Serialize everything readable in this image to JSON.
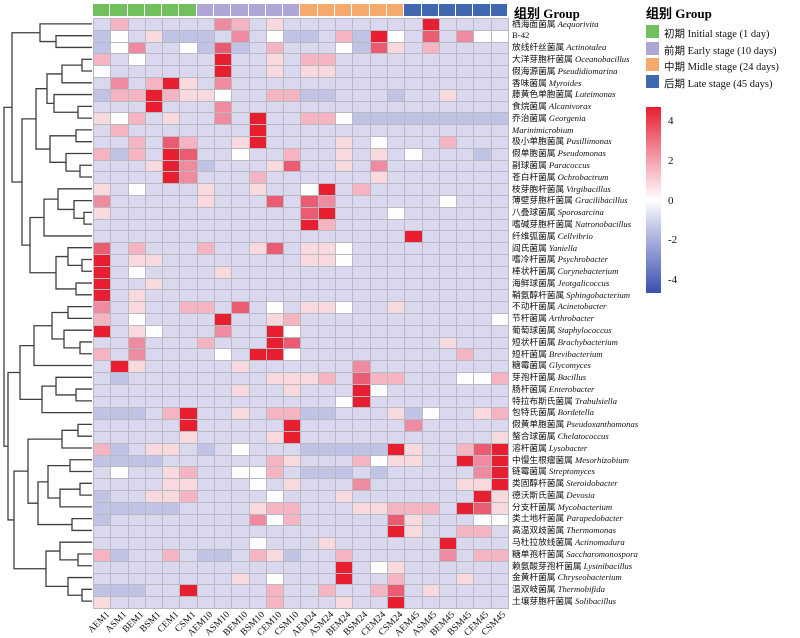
{
  "annotation_label": "组别 Group",
  "group_legend": {
    "title": "组别 Group",
    "items": [
      {
        "label": "初期 Initial stage (1 day)",
        "color": "#72bf5e"
      },
      {
        "label": "前期 Early stage (10 days)",
        "color": "#b0a6d6"
      },
      {
        "label": "中期 Midle stage (24 days)",
        "color": "#f4aa6c"
      },
      {
        "label": "后期 Late stage (45 days)",
        "color": "#3f68ae"
      }
    ]
  },
  "colorbar": {
    "ticks": [
      "4",
      "2",
      "0",
      "-2",
      "-4"
    ],
    "tick_values": [
      4,
      2,
      0,
      -2,
      -4
    ],
    "top_color": "#e71f31",
    "mid_color": "#ffffff",
    "bottom_color": "#3a50b0",
    "range": [
      4.7,
      -4.7
    ]
  },
  "chart_data": {
    "type": "heatmap",
    "title": "",
    "legend_position": "right",
    "grid": true,
    "value_range": [
      -4,
      4
    ],
    "columns": [
      "AEM1",
      "ASM1",
      "BEM1",
      "BSM1",
      "CEM1",
      "CSM1",
      "AEM10",
      "ASM10",
      "BEM10",
      "BSM10",
      "CEM10",
      "CSM10",
      "AEM24",
      "ASM24",
      "BEM24",
      "BSM24",
      "CEM24",
      "CSM24",
      "AEM45",
      "ASM45",
      "BEM45",
      "BSM45",
      "CEM45",
      "CSM45"
    ],
    "column_groups": [
      0,
      0,
      0,
      0,
      0,
      0,
      1,
      1,
      1,
      1,
      1,
      1,
      2,
      2,
      2,
      2,
      2,
      2,
      3,
      3,
      3,
      3,
      3,
      3
    ],
    "group_colors": [
      "#72bf5e",
      "#b0a6d6",
      "#f4aa6c",
      "#3f68ae"
    ],
    "rows": [
      {
        "cn": "栖海面菌属",
        "latin": "Aequorivita",
        "italic": true
      },
      {
        "cn": "",
        "latin": "B-42",
        "italic": false
      },
      {
        "cn": "放线纤丝菌属",
        "latin": "Actinotalea",
        "italic": true
      },
      {
        "cn": "大洋芽胞杆菌属",
        "latin": "Oceanobacillus",
        "italic": true
      },
      {
        "cn": "假海源菌属",
        "latin": "Pseudidiomarina",
        "italic": true
      },
      {
        "cn": "香味菌属",
        "latin": "Myroides",
        "italic": true
      },
      {
        "cn": "藤黄色单胞菌属",
        "latin": "Luteimonas",
        "italic": true
      },
      {
        "cn": "食烷菌属",
        "latin": "Alcanivorax",
        "italic": true
      },
      {
        "cn": "乔治菌属",
        "latin": "Georgenia",
        "italic": true
      },
      {
        "cn": "",
        "latin": "Marinimicrobium",
        "italic": true
      },
      {
        "cn": "极小单胞菌属",
        "latin": "Pusillimonas",
        "italic": true
      },
      {
        "cn": "假单胞菌属",
        "latin": "Pseudomonas",
        "italic": true
      },
      {
        "cn": "副球菌属",
        "latin": "Paracoccus",
        "italic": true
      },
      {
        "cn": "苍白杆菌属",
        "latin": "Ochrobactrum",
        "italic": true
      },
      {
        "cn": "枝芽胞杆菌属",
        "latin": "Virgibacillus",
        "italic": true
      },
      {
        "cn": "薄壁芽胞杆菌属",
        "latin": "Gracilibacillus",
        "italic": true
      },
      {
        "cn": "八叠球菌属",
        "latin": "Sporosarcina",
        "italic": true
      },
      {
        "cn": "嗜碱芽胞杆菌属",
        "latin": "Natronobacillus",
        "italic": true
      },
      {
        "cn": "纤维弧菌属",
        "latin": "Cellvibrio",
        "italic": true
      },
      {
        "cn": "阎氏菌属",
        "latin": "Yaniella",
        "italic": true
      },
      {
        "cn": "嗜冷杆菌属",
        "latin": "Psychrobacter",
        "italic": true
      },
      {
        "cn": "棒状杆菌属",
        "latin": "Corynebacterium",
        "italic": true
      },
      {
        "cn": "海鲜球菌属",
        "latin": "Jeotgalicoccus",
        "italic": true
      },
      {
        "cn": "鞘氨醇杆菌属",
        "latin": "Sphingobacterium",
        "italic": true
      },
      {
        "cn": "不动杆菌属",
        "latin": "Acinetobacter",
        "italic": true
      },
      {
        "cn": "节杆菌属",
        "latin": "Arthrobacter",
        "italic": true
      },
      {
        "cn": "葡萄球菌属",
        "latin": "Staphylococcus",
        "italic": true
      },
      {
        "cn": "短状杆菌属",
        "latin": "Brachybacterium",
        "italic": true
      },
      {
        "cn": "短杆菌属",
        "latin": "Brevibacterium",
        "italic": true
      },
      {
        "cn": "糖霉菌属",
        "latin": "Glycomyces",
        "italic": true
      },
      {
        "cn": "芽孢杆菌属",
        "latin": "Bacillus",
        "italic": true
      },
      {
        "cn": "肠杆菌属",
        "latin": "Enterobacter",
        "italic": true
      },
      {
        "cn": "特拉布斯氏菌属",
        "latin": "Trabulsiella",
        "italic": true
      },
      {
        "cn": "包特氏菌属",
        "latin": "Bordetella",
        "italic": true
      },
      {
        "cn": "假黄单胞菌属",
        "latin": "Pseudoxanthomonas",
        "italic": true
      },
      {
        "cn": "螯合球菌属",
        "latin": "Chelatococcus",
        "italic": true
      },
      {
        "cn": "溶杆菌属",
        "latin": "Lysobacter",
        "italic": true
      },
      {
        "cn": "中慢生根瘤菌属",
        "latin": "Mesorhizobium",
        "italic": true
      },
      {
        "cn": "链霉菌属",
        "latin": "Streptomyces",
        "italic": true
      },
      {
        "cn": "类固醇杆菌属",
        "latin": "Steroidobacter",
        "italic": true
      },
      {
        "cn": "德沃斯氏菌属",
        "latin": "Devosia",
        "italic": true
      },
      {
        "cn": "分支杆菌属",
        "latin": "Mycobacterium",
        "italic": true
      },
      {
        "cn": "类土地杆菌属",
        "latin": "Parapedobacter",
        "italic": true
      },
      {
        "cn": "高温双歧菌属",
        "latin": "Thermomonas",
        "italic": true
      },
      {
        "cn": "马杜拉放线菌属",
        "latin": "Actinomadura",
        "italic": true
      },
      {
        "cn": "糖单孢杆菌属",
        "latin": "Saccharomonospora",
        "italic": true
      },
      {
        "cn": "赖氨酸芽孢杆菌属",
        "latin": "Lysinibacillus",
        "italic": true
      },
      {
        "cn": "金黄杆菌属",
        "latin": "Chryseobacterium",
        "italic": true
      },
      {
        "cn": "温双岐菌属",
        "latin": "Thermobifida",
        "italic": true
      },
      {
        "cn": "土壤芽胞杆菌属",
        "latin": "Solibacillus",
        "italic": true
      }
    ],
    "value_codes": {
      "0": -4,
      "1": -2,
      "2": -1,
      "3": -0.5,
      "4": 0,
      "5": 0.5,
      "6": 1,
      "7": 2,
      "8": 3,
      "9": 4
    },
    "code_colors": {
      "0": "#3a50b0",
      "1": "#8d96d6",
      "2": "#c1c3e6",
      "3": "#d9d8ee",
      "4": "#fefdfe",
      "5": "#f8dade",
      "6": "#f5b4c1",
      "7": "#ef8ba0",
      "8": "#e95c72",
      "9": "#e71f31"
    },
    "matrix": [
      "363333376353333333393333",
      "243522237342236294383744",
      "247334282363334285363333",
      "634333393353663333333333",
      "433333393353553333333333",
      "373695373333333333333333",
      "266965543366223332335333",
      "333933373333333333333333",
      "546353373933664222222222",
      "363333333933333333333333",
      "336386335933335343336333",
      "626398334336335353433323",
      "333597233358335373333333",
      "333397333633333353333333",
      "534333533533493633333333",
      "733333533383873333334333",
      "533333333333893334333333",
      "333333333333963333333333",
      "333333333333333333933333",
      "836333633583554333333333",
      "935533333333554333333333",
      "934333353333333333333333",
      "933533333333333333333333",
      "935333333333333333333333",
      "735336638343554335333333",
      "634333393356333333333334",
      "935433373394333333333333",
      "337333633398333333335333",
      "637333343994333333333633",
      "395333335333333733333333",
      "323333333355563866333446",
      "333333335335333943333333",
      "333333333333334933333333",
      "222369335366223335243356",
      "333339333339333333733333",
      "333335333359333333333335",
      "623553234333222229533689",
      "222233333365333645533979",
      "343356334463222323333379",
      "333355333435333733333559",
      "233556333343335333333395",
      "222223333566333556663985",
      "233333333746333338533344",
      "333333333333333339533663",
      "333333333433353333339333",
      "623363223652336333337366",
      "333333333333339345333333",
      "333333335343339336333533",
      "222339333363363368353333",
      "533333333363335339333333"
    ],
    "dendrogram": [
      88,
      [
        80,
        [
          52,
          0,
          [
            36,
            1,
            2
          ]
        ],
        [
          70,
          [
            56,
            [
              45,
              [
                30,
                [
                  10,
                  3,
                  4
                ],
                5
              ],
              [
                38,
                6,
                [
                  14,
                  7,
                  8
                ]
              ]
            ],
            [
              42,
              [
                16,
                9,
                10
              ],
              [
                26,
                11,
                [
                  12,
                  12,
                  13
                ]
              ]
            ]
          ],
          [
            62,
            [
              48,
              [
                34,
                14,
                [
                  18,
                  15,
                  [
                    8,
                    16,
                    17
                  ]
                ]
              ],
              18
            ],
            [
              36,
              [
                24,
                19,
                [
                  10,
                  20,
                  21
                ]
              ],
              [
                16,
                22,
                23
              ]
            ]
          ]
        ]
      ],
      [
        84,
        [
          72,
          [
            58,
            [
              40,
              [
                24,
                24,
                25
              ],
              [
                28,
                26,
                [
                  12,
                  27,
                  28
                ]
              ]
            ],
            29
          ],
          [
            50,
            [
              36,
              30,
              [
                16,
                31,
                32
              ]
            ],
            33
          ]
        ],
        [
          78,
          [
            64,
            [
              30,
              [
                14,
                34,
                35
              ],
              36
            ],
            [
              54,
              [
                44,
                [
                  22,
                  37,
                  38
                ],
                [
                  32,
                  [
                    12,
                    39,
                    40
                  ],
                  41
                ]
              ],
              [
                20,
                42,
                43
              ]
            ]
          ],
          [
            46,
            [
              32,
              44,
              [
                14,
                45,
                46
              ]
            ],
            [
              24,
              47,
              [
                10,
                48,
                49
              ]
            ]
          ]
        ]
      ]
    ]
  }
}
